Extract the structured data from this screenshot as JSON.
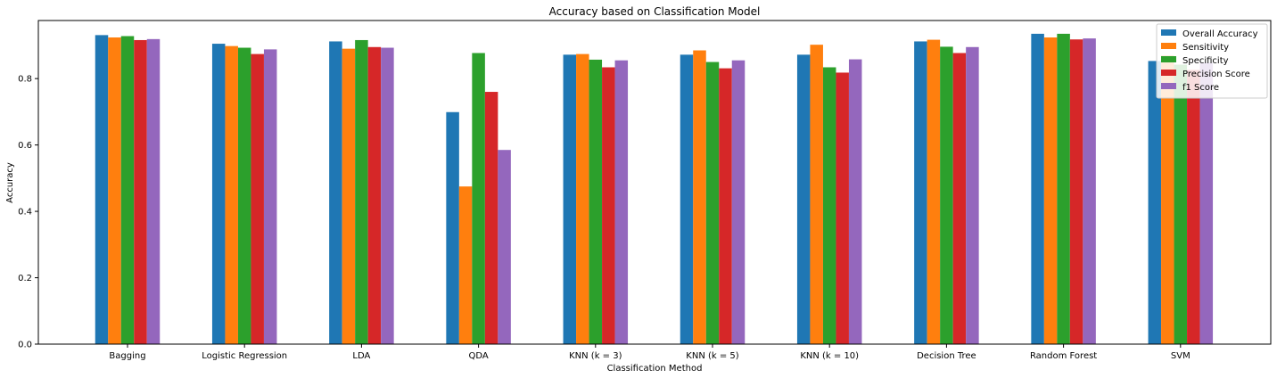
{
  "chart_data": {
    "type": "bar",
    "title": "Accuracy based on Classification Model",
    "xlabel": "Classification Method",
    "ylabel": "Accuracy",
    "ylim": [
      0,
      0.975
    ],
    "yticks": [
      "0.0",
      "0.2",
      "0.4",
      "0.6",
      "0.8"
    ],
    "grid": false,
    "legend_position": "top-right",
    "categories": [
      "Bagging",
      "Logistic Regression",
      "LDA",
      "QDA",
      "KNN (k = 3)",
      "KNN (k = 5)",
      "KNN (k = 10)",
      "Decision Tree",
      "Random Forest",
      "SVM"
    ],
    "series": [
      {
        "name": "Overall Accuracy",
        "color": "#1f77b4",
        "values": [
          0.931,
          0.905,
          0.912,
          0.699,
          0.872,
          0.872,
          0.872,
          0.912,
          0.935,
          0.853
        ]
      },
      {
        "name": "Sensitivity",
        "color": "#ff7f0e",
        "values": [
          0.924,
          0.898,
          0.89,
          0.475,
          0.874,
          0.885,
          0.902,
          0.917,
          0.924,
          0.87
        ]
      },
      {
        "name": "Specificity",
        "color": "#2ca02c",
        "values": [
          0.928,
          0.893,
          0.916,
          0.877,
          0.857,
          0.85,
          0.834,
          0.896,
          0.935,
          0.842
        ]
      },
      {
        "name": "Precision Score",
        "color": "#d62728",
        "values": [
          0.916,
          0.874,
          0.895,
          0.76,
          0.834,
          0.831,
          0.818,
          0.877,
          0.918,
          0.826
        ]
      },
      {
        "name": "f1 Score",
        "color": "#9467bd",
        "values": [
          0.919,
          0.888,
          0.893,
          0.585,
          0.855,
          0.855,
          0.858,
          0.895,
          0.921,
          0.848
        ]
      }
    ]
  }
}
